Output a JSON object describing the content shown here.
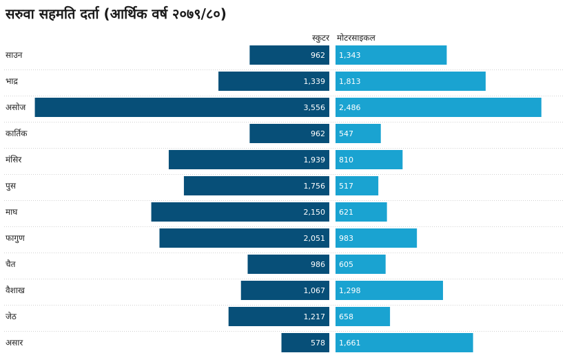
{
  "chart_data": {
    "type": "bar",
    "title": "सरुवा सहमति दर्ता (आर्थिक वर्ष २०७९/८०)",
    "categories": [
      "साउन",
      "भाद्र",
      "असोज",
      "कार्तिक",
      "मंसिर",
      "पुस",
      "माघ",
      "फागुण",
      "चैत",
      "वैशाख",
      "जेठ",
      "असार"
    ],
    "series": [
      {
        "name": "स्कुटर",
        "color": "#074f78",
        "values": [
          962,
          1339,
          3556,
          962,
          1939,
          1756,
          2150,
          2051,
          986,
          1067,
          1217,
          578
        ],
        "labels": [
          "962",
          "1,339",
          "3,556",
          "962",
          "1,939",
          "1,756",
          "2,150",
          "2,051",
          "986",
          "1,067",
          "1,217",
          "578"
        ]
      },
      {
        "name": "मोटरसाइकल",
        "color": "#1aa3d1",
        "values": [
          1343,
          1813,
          2486,
          547,
          810,
          517,
          621,
          983,
          605,
          1298,
          658,
          1661
        ],
        "labels": [
          "1,343",
          "1,813",
          "2,486",
          "547",
          "810",
          "517",
          "621",
          "983",
          "605",
          "1,298",
          "658",
          "1,661"
        ]
      }
    ],
    "legend": "top"
  }
}
